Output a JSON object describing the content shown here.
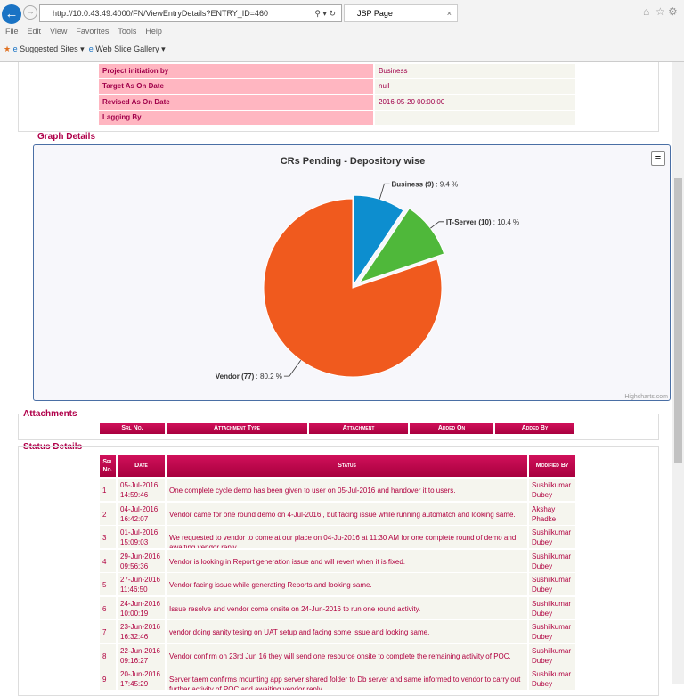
{
  "browser": {
    "url": "http://10.0.43.49:4000/FN/ViewEntryDetails?ENTRY_ID=460",
    "tab_title": "JSP Page",
    "menu": [
      "File",
      "Edit",
      "View",
      "Favorites",
      "Tools",
      "Help"
    ],
    "favorites": [
      "Suggested Sites ▾",
      "Web Slice Gallery ▾"
    ]
  },
  "details": [
    {
      "label": "Project initiation by",
      "value": "Business"
    },
    {
      "label": "Target As On Date",
      "value": "null"
    },
    {
      "label": "Revised As On Date",
      "value": "2016-05-20 00:00:00"
    },
    {
      "label": "Lagging By",
      "value": ""
    }
  ],
  "graph_section": "Graph Details",
  "chart_data": {
    "type": "pie",
    "title": "CRs Pending - Depository wise",
    "credits": "Highcharts.com",
    "slices": [
      {
        "name": "Business",
        "count": 9,
        "percent": 9.4,
        "label": "Business (9)",
        "pct_label": ": 9.4 %",
        "color": "#0d8ecf"
      },
      {
        "name": "IT-Server",
        "count": 10,
        "percent": 10.4,
        "label": "IT-Server (10)",
        "pct_label": ": 10.4 %",
        "color": "#4fb83a"
      },
      {
        "name": "Vendor",
        "count": 77,
        "percent": 80.2,
        "label": "Vendor (77)",
        "pct_label": ": 80.2 %",
        "color": "#f05a1e"
      }
    ]
  },
  "attachments": {
    "title": "Attachments",
    "headers": [
      "Srl No.",
      "Attachment Type",
      "Attachment",
      "Added On",
      "Added By"
    ]
  },
  "status": {
    "title": "Status Details",
    "headers": [
      "Srl No.",
      "Date",
      "Status",
      "Modified By"
    ],
    "rows": [
      [
        "1",
        "05-Jul-2016 14:59:46",
        "One complete cycle demo has been given to user on 05-Jul-2016 and handover it to users.",
        "Sushilkumar Dubey"
      ],
      [
        "2",
        "04-Jul-2016 16:42:07",
        "Vendor came for one round demo on 4-Jul-2016 , but facing issue while running automatch and looking same.",
        "Akshay Phadke"
      ],
      [
        "3",
        "01-Jul-2016 15:09:03",
        "We requested to vendor to come at our place on 04-Ju-2016 at 11:30 AM for one complete round of demo and awaiting vendor reply.",
        "Sushilkumar Dubey"
      ],
      [
        "4",
        "29-Jun-2016 09:56:36",
        "Vendor is looking in Report generation issue and will revert when it is fixed.",
        "Sushilkumar Dubey"
      ],
      [
        "5",
        "27-Jun-2016 11:46:50",
        "Vendor facing issue while generating Reports and looking same.",
        "Sushilkumar Dubey"
      ],
      [
        "6",
        "24-Jun-2016 10:00:19",
        "Issue resolve and vendor come onsite on 24-Jun-2016 to run one round activity.",
        "Sushilkumar Dubey"
      ],
      [
        "7",
        "23-Jun-2016 16:32:46",
        "vendor doing sanity tesing on UAT setup and facing some issue and looking same.",
        "Sushilkumar Dubey"
      ],
      [
        "8",
        "22-Jun-2016 09:16:27",
        "Vendor confirm on 23rd Jun 16 they will send one resource onsite to complete the remaining activity of POC.",
        "Sushilkumar Dubey"
      ],
      [
        "9",
        "20-Jun-2016 17:45:29",
        "Server taem confirms mounting app server shared folder to Db server and same informed to vendor to carry out further activity of POC and awaiting vendor reply.",
        "Sushilkumar Dubey"
      ]
    ]
  }
}
